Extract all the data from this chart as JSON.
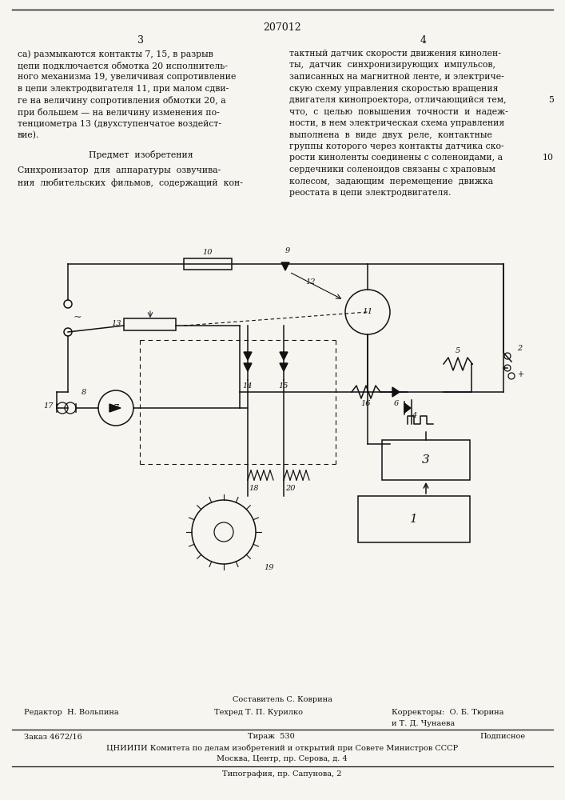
{
  "patent_number": "207012",
  "page_left": "3",
  "page_right": "4",
  "bg_color": "#f7f5f0",
  "text_color": "#111111",
  "left_col_text": [
    "са) размыкаются контакты 7, 15, в разрыв",
    "цепи подключается обмотка 20 исполнитель-",
    "ного механизма 19, увеличивая сопротивление",
    "в цепи электродвигателя 11, при малом сдви-",
    "ге на величину сопротивления обмотки 20, а",
    "при большем — на величину изменения по-",
    "тенциометра 13 (двухступенчатое воздейст-",
    "вие)."
  ],
  "predmet_title": "Предмет  изобретения",
  "predmet_text": [
    "Синхронизатор  для  аппаратуры  озвучива-",
    "ния  любительских  фильмов,  содержащий  кон-"
  ],
  "right_col_text": [
    "тактный датчик скорости движения кинолен-",
    "ты,  датчик  синхронизирующих  импульсов,",
    "записанных на магнитной ленте, и электриче-",
    "скую схему управления скоростью вращения",
    "двигателя кинопроектора, отличающийся тем,",
    "что,  с  целью  повышения  точности  и  надеж-",
    "ности, в нем электрическая схема управления",
    "выполнена  в  виде  двух  реле,  контактные",
    "группы которого через контакты датчика ско-",
    "рости киноленты соединены с соленоидами, а",
    "сердечники соленоидов связаны с храповым",
    "колесом,  задающим  перемещение  движка",
    "реостата в цепи электродвигателя."
  ],
  "line_number_5_at": 4,
  "line_number_10_at": 9,
  "footer": {
    "sostavitel": "Составитель С. Коврина",
    "redaktor": "Редактор  Н. Вольпина",
    "tekhred": "Техред Т. П. Курилко",
    "korrektory": "Корректоры:  О. Б. Тюрина",
    "korrektory2": "и Т. Д. Чунаева",
    "zakaz": "Заказ 4672/16",
    "tirazh": "Тираж  530",
    "podpisnoe": "Подписное",
    "tsniipi": "ЦНИИПИ Комитета по делам изобретений и открытий при Совете Министров СССР",
    "moskva": "Москва, Центр, пр. Серова, д. 4",
    "tipografiya": "Типография, пр. Сапунова, 2"
  }
}
